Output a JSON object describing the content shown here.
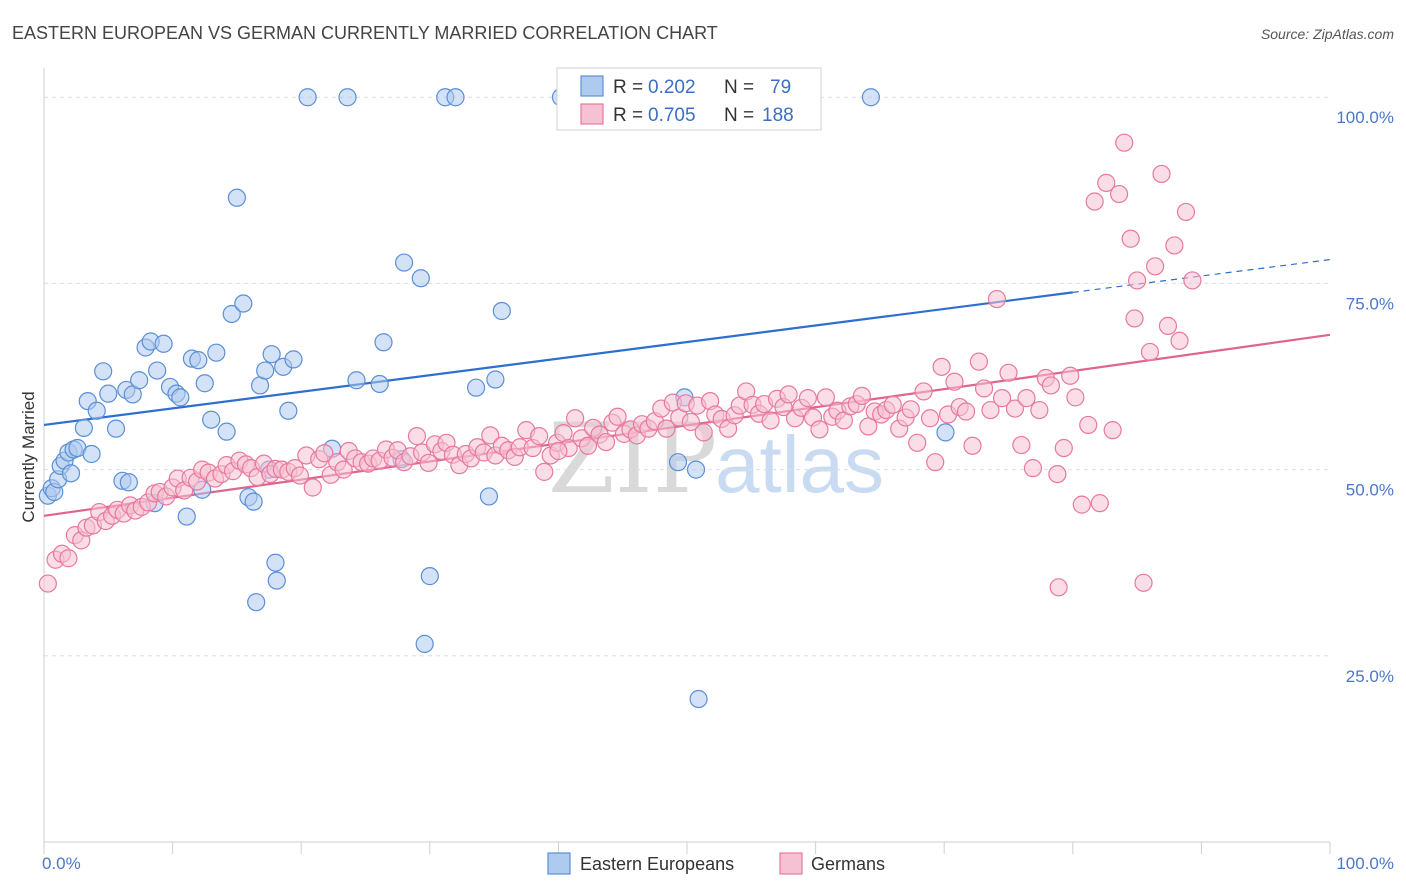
{
  "chart_data": {
    "type": "scatter",
    "title": "EASTERN EUROPEAN VS GERMAN CURRENTLY MARRIED CORRELATION CHART",
    "source": "Source: ZipAtlas.com",
    "ylabel": "Currently Married",
    "xlabel": "",
    "xlim": [
      0,
      100
    ],
    "ylim": [
      0,
      105
    ],
    "x_tick_labels": [
      "0.0%",
      "100.0%"
    ],
    "y_ticks": [
      {
        "value": 25,
        "label": "25.0%"
      },
      {
        "value": 50,
        "label": "50.0%"
      },
      {
        "value": 75,
        "label": "75.0%"
      },
      {
        "value": 100,
        "label": "100.0%"
      }
    ],
    "grid": true,
    "legend_placement": "top-center",
    "watermark": {
      "zip": "ZIP",
      "atlas": "atlas"
    },
    "series": [
      {
        "name": "Eastern Europeans",
        "color": "#5b8fd6",
        "fill": "#aecbef",
        "r_label": "R =",
        "r_value": "0.202",
        "n_label": "N =",
        "n_value": "79",
        "trend": {
          "x0": 0,
          "y0": 56.0,
          "x1": 80,
          "y1": 73.8,
          "dash_to_x": 100,
          "dash_to_y": 78.2,
          "color": "#2e6ecf"
        },
        "points": [
          [
            0.3,
            46.5
          ],
          [
            0.6,
            47.5
          ],
          [
            0.8,
            47.0
          ],
          [
            1.1,
            48.7
          ],
          [
            1.3,
            50.5
          ],
          [
            1.6,
            51.2
          ],
          [
            1.9,
            52.3
          ],
          [
            2.3,
            52.7
          ],
          [
            2.6,
            52.9
          ],
          [
            3.1,
            55.6
          ],
          [
            3.4,
            59.2
          ],
          [
            3.7,
            52.1
          ],
          [
            4.1,
            57.9
          ],
          [
            4.6,
            63.2
          ],
          [
            5.0,
            60.2
          ],
          [
            5.6,
            55.5
          ],
          [
            6.1,
            48.5
          ],
          [
            6.4,
            60.7
          ],
          [
            6.9,
            60.1
          ],
          [
            7.4,
            62.0
          ],
          [
            7.9,
            66.4
          ],
          [
            8.3,
            67.2
          ],
          [
            8.8,
            63.3
          ],
          [
            9.3,
            66.9
          ],
          [
            9.8,
            61.1
          ],
          [
            10.3,
            60.2
          ],
          [
            10.6,
            59.7
          ],
          [
            11.1,
            43.7
          ],
          [
            11.5,
            64.9
          ],
          [
            12.0,
            64.7
          ],
          [
            12.5,
            61.6
          ],
          [
            13.0,
            56.7
          ],
          [
            13.4,
            65.7
          ],
          [
            14.2,
            55.1
          ],
          [
            14.6,
            70.9
          ],
          [
            15.0,
            86.5
          ],
          [
            15.5,
            72.3
          ],
          [
            15.9,
            46.3
          ],
          [
            16.3,
            45.7
          ],
          [
            16.8,
            61.3
          ],
          [
            17.2,
            63.3
          ],
          [
            17.7,
            65.5
          ],
          [
            18.0,
            37.5
          ],
          [
            18.1,
            35.1
          ],
          [
            18.6,
            63.8
          ],
          [
            19.0,
            57.9
          ],
          [
            19.4,
            64.8
          ],
          [
            20.5,
            100
          ],
          [
            22.4,
            52.8
          ],
          [
            23.6,
            100
          ],
          [
            24.3,
            62.0
          ],
          [
            26.1,
            61.5
          ],
          [
            26.4,
            67.1
          ],
          [
            27.8,
            51.4
          ],
          [
            28.0,
            77.8
          ],
          [
            29.3,
            75.7
          ],
          [
            29.6,
            26.6
          ],
          [
            30.0,
            35.7
          ],
          [
            31.2,
            100
          ],
          [
            32.0,
            100
          ],
          [
            33.6,
            61.0
          ],
          [
            34.6,
            46.4
          ],
          [
            35.1,
            62.1
          ],
          [
            35.6,
            71.3
          ],
          [
            40.2,
            100
          ],
          [
            44.2,
            100
          ],
          [
            49.3,
            51.0
          ],
          [
            49.8,
            59.7
          ],
          [
            50.7,
            50.0
          ],
          [
            50.9,
            19.2
          ],
          [
            55.3,
            100
          ],
          [
            64.3,
            100
          ],
          [
            70.1,
            55.0
          ],
          [
            2.1,
            49.5
          ],
          [
            12.3,
            47.3
          ],
          [
            16.5,
            32.2
          ],
          [
            6.6,
            48.3
          ],
          [
            8.6,
            45.5
          ],
          [
            17.5,
            50.0
          ]
        ]
      },
      {
        "name": "Germans",
        "color": "#e8799e",
        "fill": "#f6c1d2",
        "r_label": "R =",
        "r_value": "0.705",
        "n_label": "N =",
        "n_value": "188",
        "trend": {
          "x0": 0,
          "y0": 43.8,
          "x1": 100,
          "y1": 68.1,
          "color": "#e0658e"
        },
        "points": [
          [
            0.3,
            34.7
          ],
          [
            0.9,
            37.9
          ],
          [
            1.4,
            38.7
          ],
          [
            1.9,
            38.1
          ],
          [
            2.4,
            41.2
          ],
          [
            2.9,
            40.5
          ],
          [
            3.3,
            42.2
          ],
          [
            3.8,
            42.5
          ],
          [
            4.3,
            44.3
          ],
          [
            4.8,
            43.1
          ],
          [
            5.3,
            43.8
          ],
          [
            5.7,
            44.6
          ],
          [
            6.2,
            44.1
          ],
          [
            6.7,
            45.2
          ],
          [
            7.1,
            44.5
          ],
          [
            7.6,
            45.0
          ],
          [
            8.1,
            45.6
          ],
          [
            8.6,
            46.8
          ],
          [
            9.0,
            47.0
          ],
          [
            9.5,
            46.4
          ],
          [
            10.0,
            47.6
          ],
          [
            10.4,
            48.8
          ],
          [
            10.9,
            47.2
          ],
          [
            11.4,
            48.9
          ],
          [
            11.9,
            48.4
          ],
          [
            12.3,
            50.0
          ],
          [
            12.8,
            49.6
          ],
          [
            13.3,
            48.8
          ],
          [
            13.8,
            49.4
          ],
          [
            14.2,
            50.6
          ],
          [
            14.7,
            49.8
          ],
          [
            15.2,
            51.2
          ],
          [
            15.7,
            50.7
          ],
          [
            16.1,
            50.2
          ],
          [
            16.6,
            49.0
          ],
          [
            17.1,
            50.8
          ],
          [
            17.6,
            49.4
          ],
          [
            18.0,
            50.1
          ],
          [
            18.5,
            50.0
          ],
          [
            19.0,
            49.7
          ],
          [
            19.5,
            50.2
          ],
          [
            19.9,
            49.2
          ],
          [
            20.4,
            51.9
          ],
          [
            20.9,
            47.6
          ],
          [
            21.4,
            51.4
          ],
          [
            21.8,
            52.2
          ],
          [
            22.3,
            49.3
          ],
          [
            22.8,
            51.0
          ],
          [
            23.3,
            50.0
          ],
          [
            23.7,
            52.5
          ],
          [
            24.2,
            51.5
          ],
          [
            24.7,
            51.0
          ],
          [
            25.2,
            50.8
          ],
          [
            25.6,
            51.5
          ],
          [
            26.1,
            51.2
          ],
          [
            26.6,
            52.7
          ],
          [
            27.1,
            51.6
          ],
          [
            27.5,
            52.6
          ],
          [
            28.0,
            51.0
          ],
          [
            28.5,
            51.8
          ],
          [
            29.0,
            54.5
          ],
          [
            29.4,
            52.3
          ],
          [
            29.9,
            50.9
          ],
          [
            30.4,
            53.4
          ],
          [
            30.9,
            52.5
          ],
          [
            31.3,
            53.6
          ],
          [
            31.8,
            52.0
          ],
          [
            32.3,
            50.6
          ],
          [
            32.8,
            52.1
          ],
          [
            33.2,
            51.5
          ],
          [
            33.7,
            53.0
          ],
          [
            34.2,
            52.3
          ],
          [
            34.7,
            54.6
          ],
          [
            35.1,
            51.9
          ],
          [
            35.6,
            53.2
          ],
          [
            36.1,
            52.6
          ],
          [
            36.6,
            51.7
          ],
          [
            37.0,
            53.0
          ],
          [
            37.5,
            55.3
          ],
          [
            38.0,
            52.9
          ],
          [
            38.5,
            54.5
          ],
          [
            38.9,
            49.7
          ],
          [
            39.4,
            51.9
          ],
          [
            39.9,
            53.6
          ],
          [
            40.4,
            54.9
          ],
          [
            40.8,
            52.9
          ],
          [
            41.3,
            56.9
          ],
          [
            41.8,
            54.2
          ],
          [
            42.3,
            53.2
          ],
          [
            42.7,
            55.6
          ],
          [
            43.2,
            54.7
          ],
          [
            43.7,
            53.7
          ],
          [
            44.2,
            56.3
          ],
          [
            44.6,
            57.1
          ],
          [
            45.1,
            54.8
          ],
          [
            45.6,
            55.4
          ],
          [
            46.1,
            54.6
          ],
          [
            46.5,
            56.1
          ],
          [
            47.0,
            55.5
          ],
          [
            47.5,
            56.5
          ],
          [
            48.0,
            58.2
          ],
          [
            48.4,
            55.5
          ],
          [
            48.9,
            59.0
          ],
          [
            49.4,
            57.0
          ],
          [
            49.9,
            58.9
          ],
          [
            50.3,
            56.4
          ],
          [
            50.8,
            58.6
          ],
          [
            51.3,
            55.0
          ],
          [
            51.8,
            59.2
          ],
          [
            52.2,
            57.4
          ],
          [
            52.7,
            56.8
          ],
          [
            53.2,
            55.5
          ],
          [
            53.7,
            57.3
          ],
          [
            54.1,
            58.6
          ],
          [
            54.6,
            60.5
          ],
          [
            55.1,
            58.7
          ],
          [
            55.6,
            57.5
          ],
          [
            56.0,
            58.8
          ],
          [
            56.5,
            56.6
          ],
          [
            57.0,
            59.5
          ],
          [
            57.5,
            58.4
          ],
          [
            57.9,
            60.1
          ],
          [
            58.4,
            56.9
          ],
          [
            58.9,
            58.3
          ],
          [
            59.4,
            59.6
          ],
          [
            59.8,
            57.0
          ],
          [
            60.3,
            55.4
          ],
          [
            60.8,
            59.7
          ],
          [
            61.3,
            57.1
          ],
          [
            61.7,
            57.9
          ],
          [
            62.2,
            56.6
          ],
          [
            62.7,
            58.5
          ],
          [
            63.2,
            58.8
          ],
          [
            63.6,
            59.9
          ],
          [
            64.1,
            55.8
          ],
          [
            64.6,
            57.8
          ],
          [
            65.1,
            57.4
          ],
          [
            65.5,
            58.0
          ],
          [
            66.0,
            58.7
          ],
          [
            66.5,
            55.5
          ],
          [
            67.0,
            57.0
          ],
          [
            67.4,
            58.1
          ],
          [
            67.9,
            53.6
          ],
          [
            68.4,
            60.5
          ],
          [
            68.9,
            56.9
          ],
          [
            69.3,
            51.0
          ],
          [
            69.8,
            63.8
          ],
          [
            70.3,
            57.4
          ],
          [
            70.8,
            61.8
          ],
          [
            71.2,
            58.4
          ],
          [
            71.7,
            57.8
          ],
          [
            72.2,
            53.2
          ],
          [
            72.7,
            64.5
          ],
          [
            73.1,
            60.9
          ],
          [
            73.6,
            58.0
          ],
          [
            74.1,
            72.9
          ],
          [
            74.5,
            59.6
          ],
          [
            75.0,
            63.0
          ],
          [
            75.5,
            58.2
          ],
          [
            76.0,
            53.3
          ],
          [
            76.4,
            59.6
          ],
          [
            76.9,
            50.2
          ],
          [
            77.4,
            58.0
          ],
          [
            77.9,
            62.3
          ],
          [
            78.3,
            61.3
          ],
          [
            78.8,
            49.4
          ],
          [
            79.3,
            52.9
          ],
          [
            79.8,
            62.6
          ],
          [
            80.2,
            59.7
          ],
          [
            80.7,
            45.3
          ],
          [
            81.2,
            56.0
          ],
          [
            81.7,
            86.0
          ],
          [
            82.1,
            45.5
          ],
          [
            82.6,
            88.5
          ],
          [
            83.1,
            55.3
          ],
          [
            83.6,
            87.0
          ],
          [
            84.0,
            93.9
          ],
          [
            84.5,
            81.0
          ],
          [
            84.8,
            70.3
          ],
          [
            85.0,
            75.4
          ],
          [
            85.5,
            34.8
          ],
          [
            86.0,
            65.8
          ],
          [
            86.4,
            77.3
          ],
          [
            86.9,
            89.7
          ],
          [
            87.4,
            69.3
          ],
          [
            87.9,
            80.1
          ],
          [
            88.3,
            67.3
          ],
          [
            88.8,
            84.6
          ],
          [
            89.3,
            75.4
          ],
          [
            40.0,
            52.5
          ],
          [
            78.9,
            34.2
          ]
        ]
      }
    ]
  }
}
